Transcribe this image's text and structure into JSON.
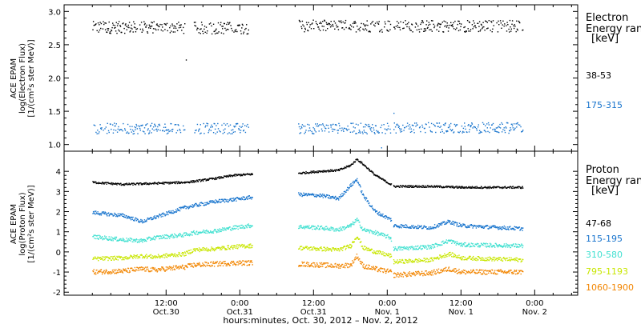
{
  "chart_data": [
    {
      "type": "scatter",
      "panel": "electron",
      "ylabel_lines": [
        "ACE EPAM",
        "log(Electron Flux)",
        "[1/(cm²s ster MeV)]"
      ],
      "ylim": [
        0.9,
        3.1
      ],
      "yticks": [
        1.0,
        1.5,
        2.0,
        2.5,
        3.0
      ],
      "ytick_labels": [
        "1.0",
        "1.5",
        "2.0",
        "2.5",
        "3.0"
      ],
      "legend_title_lines": [
        "Electron",
        "Energy ranges",
        "[keV]"
      ],
      "gaps": [
        [
          26,
          33.5
        ],
        [
          48.6,
          48.9
        ]
      ],
      "series": [
        {
          "name": "38-53",
          "color": "#000000",
          "segments": [
            {
              "t0": 0,
              "t1": 15,
              "base": 2.76
            },
            {
              "t0": 16.5,
              "t1": 25.5,
              "base": 2.75
            },
            {
              "t0": 33.5,
              "t1": 48.5,
              "base": 2.78
            },
            {
              "t0": 49,
              "t1": 70,
              "base": 2.78
            }
          ],
          "spread": 0.09,
          "outliers": [
            [
              15.2,
              2.27
            ]
          ]
        },
        {
          "name": "175-315",
          "color": "#1874cd",
          "segments": [
            {
              "t0": 0,
              "t1": 15,
              "base": 1.24
            },
            {
              "t0": 16.5,
              "t1": 25.5,
              "base": 1.24
            },
            {
              "t0": 33.5,
              "t1": 48.5,
              "base": 1.24
            },
            {
              "t0": 49,
              "t1": 70,
              "base": 1.25
            }
          ],
          "spread": 0.08,
          "outliers": [
            [
              47,
              0.95
            ],
            [
              49,
              1.47
            ]
          ]
        }
      ]
    },
    {
      "type": "scatter",
      "panel": "proton",
      "ylabel_lines": [
        "ACE EPAM",
        "log(Proton Flux)",
        "[1/(cm²s ster MeV)]"
      ],
      "ylim": [
        -2.15,
        5.0
      ],
      "yticks": [
        -2,
        -1,
        0,
        1,
        2,
        3,
        4
      ],
      "ytick_labels": [
        "-2",
        "-1",
        "0",
        "1",
        "2",
        "3",
        "4"
      ],
      "legend_title_lines": [
        "Proton",
        "Energy ranges",
        "[keV]"
      ],
      "gaps": [
        [
          26,
          33.5
        ],
        [
          48.6,
          48.9
        ]
      ],
      "series": [
        {
          "name": "47-68",
          "color": "#000000",
          "spread": 0.05,
          "path": [
            [
              0,
              3.45
            ],
            [
              5,
              3.35
            ],
            [
              10,
              3.4
            ],
            [
              15,
              3.45
            ],
            [
              16.5,
              3.5
            ],
            [
              20,
              3.65
            ],
            [
              23,
              3.8
            ],
            [
              25.5,
              3.85
            ],
            [
              33.5,
              3.9
            ],
            [
              37,
              4.0
            ],
            [
              40,
              4.05
            ],
            [
              42,
              4.3
            ],
            [
              43,
              4.6
            ],
            [
              44,
              4.35
            ],
            [
              46,
              3.8
            ],
            [
              48.5,
              3.35
            ],
            [
              49,
              3.25
            ],
            [
              55,
              3.25
            ],
            [
              60,
              3.2
            ],
            [
              70,
              3.2
            ]
          ]
        },
        {
          "name": "115-195",
          "color": "#1874cd",
          "spread": 0.09,
          "path": [
            [
              0,
              1.95
            ],
            [
              5,
              1.8
            ],
            [
              8,
              1.5
            ],
            [
              10,
              1.7
            ],
            [
              15,
              2.2
            ],
            [
              16.5,
              2.3
            ],
            [
              20,
              2.5
            ],
            [
              23,
              2.6
            ],
            [
              25.5,
              2.7
            ],
            [
              33.5,
              2.85
            ],
            [
              37,
              2.8
            ],
            [
              40,
              2.65
            ],
            [
              42,
              3.3
            ],
            [
              43,
              3.6
            ],
            [
              44,
              2.8
            ],
            [
              46,
              2.0
            ],
            [
              48.5,
              1.6
            ],
            [
              49,
              1.3
            ],
            [
              55,
              1.2
            ],
            [
              58,
              1.5
            ],
            [
              60,
              1.3
            ],
            [
              70,
              1.15
            ]
          ]
        },
        {
          "name": "310-580",
          "color": "#40e0d0",
          "spread": 0.1,
          "path": [
            [
              0,
              0.75
            ],
            [
              5,
              0.6
            ],
            [
              8,
              0.55
            ],
            [
              10,
              0.7
            ],
            [
              15,
              0.85
            ],
            [
              16.5,
              0.95
            ],
            [
              20,
              1.05
            ],
            [
              23,
              1.2
            ],
            [
              25.5,
              1.3
            ],
            [
              33.5,
              1.25
            ],
            [
              37,
              1.2
            ],
            [
              40,
              1.1
            ],
            [
              42,
              1.3
            ],
            [
              43,
              1.6
            ],
            [
              44,
              1.1
            ],
            [
              46,
              0.95
            ],
            [
              48.5,
              0.7
            ],
            [
              49,
              0.15
            ],
            [
              55,
              0.25
            ],
            [
              58,
              0.55
            ],
            [
              60,
              0.35
            ],
            [
              70,
              0.3
            ]
          ]
        },
        {
          "name": "795-1193",
          "color": "#c8e600",
          "spread": 0.1,
          "path": [
            [
              0,
              -0.35
            ],
            [
              5,
              -0.3
            ],
            [
              8,
              -0.2
            ],
            [
              10,
              -0.25
            ],
            [
              15,
              -0.1
            ],
            [
              16.5,
              0.1
            ],
            [
              20,
              0.15
            ],
            [
              23,
              0.25
            ],
            [
              25.5,
              0.3
            ],
            [
              33.5,
              0.2
            ],
            [
              37,
              0.15
            ],
            [
              40,
              0.1
            ],
            [
              42,
              0.3
            ],
            [
              43,
              0.8
            ],
            [
              44,
              0.2
            ],
            [
              46,
              0.0
            ],
            [
              48.5,
              -0.2
            ],
            [
              49,
              -0.5
            ],
            [
              55,
              -0.4
            ],
            [
              58,
              -0.1
            ],
            [
              60,
              -0.3
            ],
            [
              70,
              -0.4
            ]
          ]
        },
        {
          "name": "1060-1900",
          "color": "#f28500",
          "spread": 0.12,
          "path": [
            [
              0,
              -1.0
            ],
            [
              5,
              -0.95
            ],
            [
              8,
              -0.85
            ],
            [
              10,
              -0.9
            ],
            [
              15,
              -0.75
            ],
            [
              16.5,
              -0.65
            ],
            [
              20,
              -0.6
            ],
            [
              23,
              -0.55
            ],
            [
              25.5,
              -0.55
            ],
            [
              33.5,
              -0.6
            ],
            [
              37,
              -0.65
            ],
            [
              40,
              -0.7
            ],
            [
              42,
              -0.65
            ],
            [
              43,
              -0.2
            ],
            [
              44,
              -0.7
            ],
            [
              46,
              -0.85
            ],
            [
              48.5,
              -1.0
            ],
            [
              49,
              -1.15
            ],
            [
              55,
              -1.05
            ],
            [
              58,
              -0.85
            ],
            [
              60,
              -1.0
            ],
            [
              70,
              -1.0
            ]
          ]
        }
      ]
    }
  ],
  "x_axis": {
    "xlim_hours": [
      -4.6,
      79
    ],
    "tick_hours": [
      12,
      24,
      36,
      48,
      60,
      72
    ],
    "tick_labels": [
      {
        "line1": "12:00",
        "line2": "Oct.30"
      },
      {
        "line1": "0:00",
        "line2": "Oct.31"
      },
      {
        "line1": "12:00",
        "line2": "Oct.31"
      },
      {
        "line1": "0:00",
        "line2": "Nov. 1"
      },
      {
        "line1": "12:00",
        "line2": "Nov. 1"
      },
      {
        "line1": "0:00",
        "line2": "Nov. 2"
      }
    ],
    "label": "hours:minutes, Oct. 30, 2012 – Nov. 2, 2012"
  }
}
